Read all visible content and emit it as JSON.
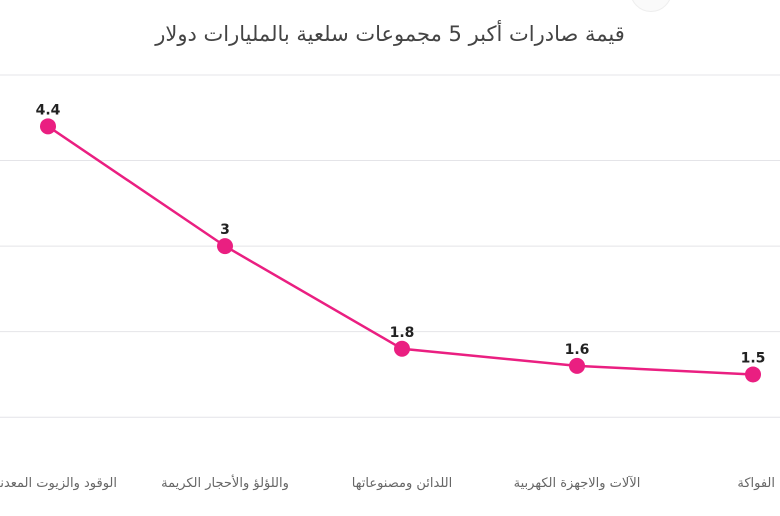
{
  "chart_data": {
    "type": "line",
    "title": "قيمة صادرات أكبر 5 مجموعات سلعية بالمليارات دولار",
    "categories": [
      "الوقود والزيوت المعدنية",
      "واللؤلؤ والأحجار الكريمة",
      "اللدائن ومصنوعاتها",
      "الآلات والاجهزة الكهربية",
      "الفواكة"
    ],
    "series": [
      {
        "values": [
          4.4,
          3,
          1.8,
          1.6,
          1.5
        ]
      }
    ],
    "data_labels": [
      "4.4",
      "3",
      "1.8",
      "1.6",
      "1.5"
    ],
    "ylim": [
      0.5,
      5.0
    ],
    "grid": true,
    "legend": "none",
    "colors": {
      "line": "#ea1f81",
      "grid": "#e4e4e8",
      "text": "#444444"
    }
  }
}
